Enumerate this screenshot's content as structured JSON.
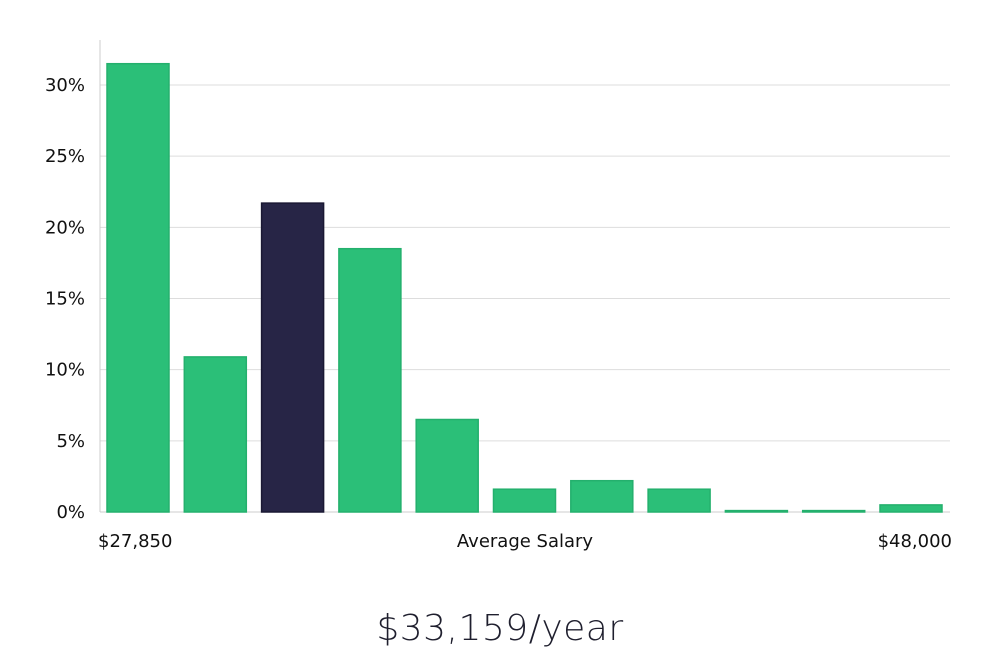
{
  "chart_data": {
    "type": "bar",
    "title": "",
    "xlabel": "Average Salary",
    "ylabel": "",
    "x_min_label": "$27,850",
    "x_max_label": "$48,000",
    "ylim": [
      0,
      32
    ],
    "yticks": [
      0,
      5,
      10,
      15,
      20,
      25,
      30
    ],
    "ytick_labels": [
      "0%",
      "5%",
      "10%",
      "15%",
      "20%",
      "25%",
      "30%"
    ],
    "grid": true,
    "values": [
      31.5,
      10.9,
      21.7,
      18.5,
      6.5,
      1.6,
      2.2,
      1.6,
      0.1,
      0.1,
      0.5
    ],
    "highlight_index": 2,
    "colors": {
      "bar": "#2bbf78",
      "highlight": "#272546",
      "grid": "#dddddd",
      "axis": "#cccccc"
    }
  },
  "summary": {
    "salary": "$33,159/year"
  }
}
